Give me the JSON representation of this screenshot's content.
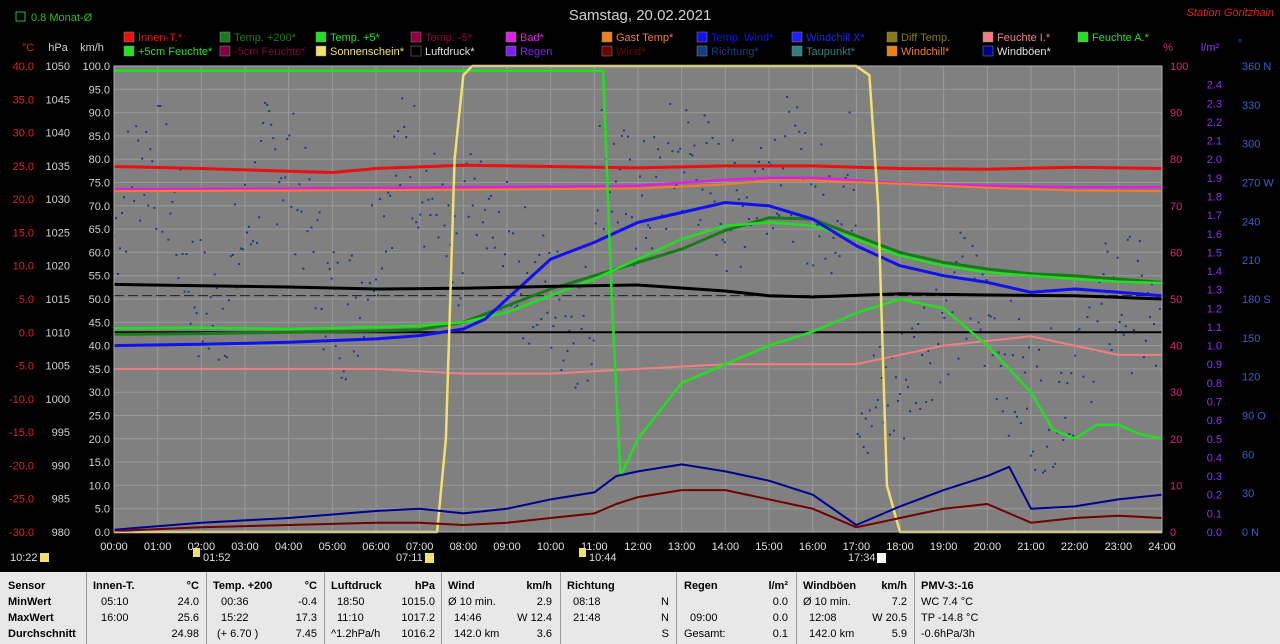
{
  "header": {
    "title": "Samstag, 20.02.2021",
    "station": "Station Göritzhain",
    "avg_toggle": "0.8 Monat-Ø"
  },
  "units": {
    "c": "°C",
    "hpa": "hPa",
    "kmh": "km/h",
    "pct": "%",
    "lm2": "l/m²",
    "deg": "°"
  },
  "legend_row1": [
    {
      "label": "Innen-T.*",
      "color": "#e81010"
    },
    {
      "label": "Temp. +200*",
      "color": "#1a7a1a"
    },
    {
      "label": "Temp. +5*",
      "color": "#20e020"
    },
    {
      "label": "Temp. -5*",
      "color": "#900040"
    },
    {
      "label": "Bad*",
      "color": "#e020e0"
    },
    {
      "label": "Gast Temp*",
      "color": "#f08020"
    },
    {
      "label": "Temp. Wind*",
      "color": "#1010f0"
    },
    {
      "label": "Windchill X*",
      "color": "#2020ff"
    },
    {
      "label": "Diff Temp.",
      "color": "#8a7a10"
    },
    {
      "label": "Feuchte I.*",
      "color": "#f08080"
    },
    {
      "label": "Feuchte A.*",
      "color": "#20e020"
    }
  ],
  "legend_row2": [
    {
      "label": "+5cm Feuchte*",
      "color": "#20e020"
    },
    {
      "label": "-5cm Feuchte*",
      "color": "#800040"
    },
    {
      "label": "Sonnenschein*",
      "color": "#f0e070"
    },
    {
      "label": "Luftdruck*",
      "color": "#000000"
    },
    {
      "label": "Regen",
      "color": "#8020f0"
    },
    {
      "label": "Wind*",
      "color": "#700000"
    },
    {
      "label": "Richtung*",
      "color": "#104080"
    },
    {
      "label": "Taupunkt*",
      "color": "#308080"
    },
    {
      "label": "Windchill*",
      "color": "#f08010"
    },
    {
      "label": "Windböen*",
      "color": "#000090"
    }
  ],
  "axes": {
    "temp_ticks": [
      "40.0",
      "35.0",
      "30.0",
      "25.0",
      "20.0",
      "15.0",
      "10.0",
      "5.0",
      "0.0",
      "-5.0",
      "-10.0",
      "-15.0",
      "-20.0",
      "-25.0",
      "-30.0"
    ],
    "hpa_ticks": [
      "1050",
      "1045",
      "1040",
      "1035",
      "1030",
      "1025",
      "1020",
      "1015",
      "1010",
      "1005",
      "1000",
      "995",
      "990",
      "985",
      "980"
    ],
    "kmh_ticks": [
      "100.0",
      "95.0",
      "90.0",
      "85.0",
      "80.0",
      "75.0",
      "70.0",
      "65.0",
      "60.0",
      "55.0",
      "50.0",
      "45.0",
      "40.0",
      "35.0",
      "30.0",
      "25.0",
      "20.0",
      "15.0",
      "10.0",
      "5.0",
      "0.0"
    ],
    "pct_ticks": [
      "100",
      "90",
      "80",
      "70",
      "60",
      "50",
      "40",
      "30",
      "20",
      "10",
      "0"
    ],
    "lm2_ticks": [
      "2.4",
      "2.3",
      "2.2",
      "2.1",
      "2.0",
      "1.9",
      "1.8",
      "1.7",
      "1.6",
      "1.5",
      "1.4",
      "1.3",
      "1.2",
      "1.1",
      "1.0",
      "0.9",
      "0.8",
      "0.7",
      "0.6",
      "0.5",
      "0.4",
      "0.3",
      "0.2",
      "0.1",
      "0.0"
    ],
    "dir_ticks": [
      "360 N",
      "330",
      "300",
      "270 W",
      "240",
      "210",
      "180 S",
      "150",
      "120",
      "90 O",
      "60",
      "30",
      "0 N"
    ],
    "time_ticks": [
      "00:00",
      "01:00",
      "02:00",
      "03:00",
      "04:00",
      "05:00",
      "06:00",
      "07:00",
      "08:00",
      "09:00",
      "10:00",
      "11:00",
      "12:00",
      "13:00",
      "14:00",
      "15:00",
      "16:00",
      "17:00",
      "18:00",
      "19:00",
      "20:00",
      "21:00",
      "22:00",
      "23:00",
      "24:00"
    ]
  },
  "markers": {
    "moonset": "10:22",
    "moonrise_time": "01:52",
    "sunrise": "07:11",
    "moon_event": "10:44",
    "sunset": "17:34"
  },
  "chart_data": {
    "type": "line",
    "x_unit": "hour",
    "xlim": [
      0,
      24
    ],
    "ylim_temp": [
      -30,
      40
    ],
    "ylim_pressure": [
      980,
      1050
    ],
    "ylim_wind": [
      0,
      100
    ],
    "ylim_humidity": [
      0,
      100
    ],
    "ylim_rain": [
      0,
      2.5
    ],
    "ylim_direction": [
      0,
      360
    ],
    "series": [
      {
        "name": "Innen-T.*",
        "axis": "temp",
        "color": "#e81010",
        "x": [
          0,
          2,
          4,
          5,
          6,
          8,
          10,
          12,
          14,
          16,
          18,
          20,
          22,
          24
        ],
        "y": [
          24.9,
          24.6,
          24.2,
          24.0,
          24.6,
          25.1,
          24.9,
          24.7,
          25.0,
          25.0,
          24.6,
          24.5,
          24.8,
          24.6
        ]
      },
      {
        "name": "Temp. +200*",
        "axis": "temp",
        "color": "#1a7a1a",
        "x": [
          0,
          2,
          4,
          6,
          7,
          8,
          9,
          10,
          11,
          12,
          13,
          14,
          15,
          16,
          17,
          18,
          19,
          20,
          21,
          22,
          23,
          24
        ],
        "y": [
          -0.3,
          -0.2,
          0.0,
          0.2,
          0.4,
          1.5,
          4.0,
          6.5,
          8.5,
          10.5,
          12.5,
          15.3,
          17.2,
          17.0,
          14.5,
          12.0,
          10.5,
          9.5,
          8.8,
          8.5,
          8.0,
          7.5
        ]
      },
      {
        "name": "Temp. +5*",
        "axis": "temp",
        "color": "#20e020",
        "x": [
          0,
          2,
          4,
          6,
          7,
          8,
          9,
          10,
          11,
          12,
          13,
          14,
          15,
          16,
          17,
          18,
          19,
          20,
          21,
          22,
          23,
          24
        ],
        "y": [
          0.6,
          0.7,
          0.5,
          0.8,
          1.0,
          1.5,
          3.0,
          5.5,
          8.0,
          11.0,
          14.0,
          16.0,
          16.5,
          16.0,
          14.0,
          11.5,
          10.0,
          9.0,
          8.5,
          8.0,
          7.6,
          7.4
        ]
      },
      {
        "name": "Temp. Wind*",
        "axis": "temp",
        "color": "#1010f0",
        "x": [
          0,
          2,
          4,
          6,
          7,
          8,
          8.5,
          9,
          10,
          11,
          12,
          13,
          14,
          15,
          16,
          17,
          18,
          19,
          20,
          21,
          22,
          23,
          24
        ],
        "y": [
          -2.0,
          -1.8,
          -1.5,
          -1.0,
          -0.5,
          0.5,
          2.0,
          5.0,
          11.0,
          13.5,
          16.5,
          18.0,
          19.5,
          19.0,
          17.0,
          13.0,
          10.0,
          8.5,
          7.5,
          6.0,
          6.5,
          6.0,
          5.5
        ]
      },
      {
        "name": "Bad*",
        "axis": "temp",
        "color": "#e020e0",
        "x": [
          0,
          4,
          8,
          12,
          14,
          15,
          16,
          18,
          20,
          22,
          24
        ],
        "y": [
          21.5,
          21.6,
          21.8,
          22.0,
          22.9,
          23.2,
          23.2,
          22.4,
          22.0,
          21.8,
          21.8
        ]
      },
      {
        "name": "Gast Temp*",
        "axis": "temp",
        "color": "#f08020",
        "x": [
          0,
          4,
          8,
          12,
          14,
          15,
          16,
          18,
          20,
          22,
          24
        ],
        "y": [
          21.2,
          21.3,
          21.4,
          21.6,
          22.2,
          22.8,
          22.8,
          22.3,
          21.7,
          21.3,
          21.2
        ]
      },
      {
        "name": "Luftdruck*",
        "axis": "pressure",
        "color": "#000000",
        "x": [
          0,
          2,
          4,
          6,
          8,
          10,
          12,
          14,
          15,
          16,
          18,
          20,
          22,
          24
        ],
        "y": [
          1017.2,
          1017.0,
          1016.8,
          1016.5,
          1016.6,
          1016.9,
          1017.1,
          1016.2,
          1015.5,
          1015.3,
          1015.8,
          1015.6,
          1015.5,
          1015.0
        ]
      },
      {
        "name": "Feuchte I.*",
        "axis": "humidity",
        "color": "#f08080",
        "x": [
          0,
          2,
          4,
          6,
          8,
          10,
          12,
          14,
          16,
          17,
          18,
          19,
          20,
          21,
          22,
          23,
          24
        ],
        "y": [
          35,
          35,
          35,
          35,
          34,
          34,
          35,
          36,
          36,
          36,
          38,
          40,
          41,
          42,
          40,
          38,
          38
        ]
      },
      {
        "name": "Feuchte A.*",
        "axis": "humidity",
        "color": "#20e020",
        "x": [
          0,
          8,
          11.2,
          11.4,
          11.6,
          12,
          13,
          14,
          15,
          16,
          17,
          18,
          19,
          20,
          21,
          21.5,
          22,
          22.5,
          23,
          23.5,
          24
        ],
        "y": [
          99,
          99,
          99,
          50,
          12,
          20,
          32,
          36,
          40,
          43,
          47,
          50,
          48,
          40,
          30,
          22,
          20,
          23,
          23,
          21,
          20
        ]
      },
      {
        "name": "Sonnenschein*",
        "axis": "humidity",
        "color": "#f0e070",
        "x": [
          0,
          7.4,
          7.6,
          7.8,
          8,
          8.2,
          10,
          12,
          14,
          17,
          17.3,
          17.5,
          17.7,
          18,
          24
        ],
        "y": [
          0,
          0,
          20,
          80,
          98,
          100,
          100,
          100,
          100,
          100,
          98,
          70,
          10,
          0,
          0
        ]
      },
      {
        "name": "Windböen*",
        "axis": "wind",
        "color": "#000090",
        "x": [
          0,
          2,
          4,
          6,
          7,
          8,
          9,
          10,
          11,
          11.5,
          12,
          13,
          14,
          15,
          16,
          17,
          18,
          19,
          20,
          20.5,
          21,
          22,
          23,
          24
        ],
        "y": [
          0.5,
          2.0,
          3.0,
          4.5,
          5.0,
          4.0,
          5.0,
          7.0,
          8.5,
          12.0,
          13.0,
          14.5,
          13.0,
          11.0,
          8.0,
          1.5,
          5.5,
          9.0,
          12.0,
          14.0,
          5.0,
          5.5,
          7.0,
          8.0
        ]
      },
      {
        "name": "Wind*",
        "axis": "wind",
        "color": "#700000",
        "x": [
          0,
          2,
          4,
          6,
          7,
          8,
          9,
          10,
          11,
          11.5,
          12,
          13,
          14,
          15,
          16,
          17,
          18,
          19,
          20,
          21,
          22,
          23,
          24
        ],
        "y": [
          0.2,
          1.0,
          1.5,
          2.0,
          2.0,
          1.5,
          2.0,
          3.0,
          4.0,
          6.0,
          7.5,
          9.0,
          9.0,
          7.0,
          5.0,
          1.0,
          3.0,
          5.0,
          6.0,
          2.0,
          3.0,
          3.5,
          3.0
        ]
      }
    ]
  },
  "stats": {
    "sensor": {
      "title": "Sensor",
      "rows": [
        "MinWert",
        "MaxWert",
        "Durchschnitt"
      ]
    },
    "innen": {
      "title": "Innen-T.",
      "unit": "°C",
      "times": [
        "05:10",
        "16:00",
        ""
      ],
      "values": [
        "24.0",
        "25.6",
        "24.98"
      ]
    },
    "temp200": {
      "title": "Temp. +200",
      "unit": "°C",
      "times": [
        "00:36",
        "15:22",
        "(+ 6.70 )"
      ],
      "values": [
        "-0.4",
        "17.3",
        "7.45"
      ]
    },
    "druck": {
      "title": "Luftdruck",
      "unit": "hPa",
      "times": [
        "18:50",
        "11:10",
        "^1.2hPa/h"
      ],
      "values": [
        "1015.0",
        "1017.2",
        "1016.2"
      ]
    },
    "wind": {
      "title": "Wind",
      "unit": "km/h",
      "times": [
        "Ø 10 min.",
        "14:46",
        "142.0 km"
      ],
      "values": [
        "2.9",
        "W 12.4",
        "3.6"
      ]
    },
    "richtung": {
      "title": "Richtung",
      "unit": "",
      "times": [
        "08:18",
        "21:48",
        ""
      ],
      "values": [
        "N",
        "N",
        "S"
      ]
    },
    "regen": {
      "title": "Regen",
      "unit": "l/m²",
      "times": [
        "",
        "09:00",
        "Gesamt:"
      ],
      "values": [
        "0.0",
        "0.0",
        "0.1"
      ]
    },
    "boeen": {
      "title": "Windböen",
      "unit": "km/h",
      "times": [
        "Ø 10 min.",
        "12:08",
        "142.0 km"
      ],
      "values": [
        "7.2",
        "W 20.5",
        "5.9"
      ]
    },
    "pmv": {
      "title": "PMV-3:-16",
      "lines": [
        "WC 7.4 °C",
        "TP -14.8 °C",
        "-0.6hPa/3h"
      ]
    }
  }
}
